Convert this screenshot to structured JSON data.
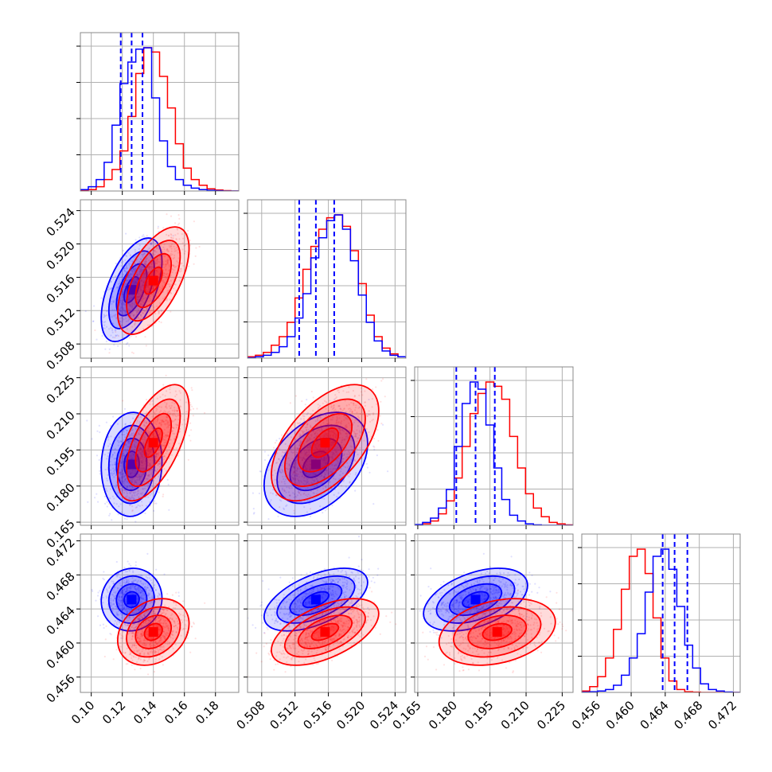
{
  "chart_data": {
    "type": "corner",
    "colors": {
      "series_a": "#0000ff",
      "series_b": "#ff0000",
      "grid": "#b0b0b0",
      "frame": "#888888"
    },
    "parameters": [
      {
        "id": "p0",
        "range": [
          0.093,
          0.195
        ],
        "ticks": [
          "0.10",
          "0.12",
          "0.14",
          "0.16",
          "0.18"
        ]
      },
      {
        "id": "p1",
        "range": [
          0.5063,
          0.5253
        ],
        "ticks": [
          "0.508",
          "0.512",
          "0.516",
          "0.520",
          "0.524"
        ]
      },
      {
        "id": "p2",
        "range": [
          0.1637,
          0.2295
        ],
        "ticks": [
          "0.165",
          "0.180",
          "0.195",
          "0.210",
          "0.225"
        ]
      },
      {
        "id": "p3",
        "range": [
          0.4542,
          0.4728
        ],
        "ticks": [
          "0.456",
          "0.460",
          "0.464",
          "0.468",
          "0.472"
        ]
      }
    ],
    "series": [
      {
        "color": "#0000ff",
        "mean": [
          0.126,
          0.5145,
          0.189,
          0.4651
        ],
        "std": [
          0.0085,
          0.0027,
          0.0094,
          0.0016
        ],
        "quantiles": [
          [
            0.119,
            0.126,
            0.133
          ],
          [
            0.5125,
            0.5145,
            0.5167
          ],
          [
            0.181,
            0.189,
            0.197
          ],
          [
            0.4637,
            0.4651,
            0.4666
          ]
        ]
      },
      {
        "color": "#ff0000",
        "mean": [
          0.14,
          0.5156,
          0.198,
          0.4613
        ],
        "std": [
          0.01,
          0.0028,
          0.0105,
          0.0017
        ]
      }
    ],
    "correlations": {
      "blue": {
        "1_0": 0.55,
        "2_0": 0.05,
        "2_1": 0.4,
        "3_0": 0.05,
        "3_1": 0.55,
        "3_2": 0.45
      },
      "red": {
        "1_0": 0.6,
        "2_0": 0.6,
        "2_1": 0.55,
        "3_0": 0.25,
        "3_1": 0.55,
        "3_2": 0.3
      }
    },
    "histograms": {
      "0": {
        "blue": [
          1,
          3,
          8,
          20,
          46,
          75,
          90,
          99,
          100,
          65,
          35,
          17,
          8,
          4,
          2,
          1,
          0.5,
          0.2,
          0,
          0
        ],
        "red": [
          0.5,
          1,
          3,
          8,
          15,
          28,
          52,
          82,
          100,
          97,
          80,
          58,
          33,
          16,
          8,
          4,
          1.5,
          0.7,
          0.3,
          0
        ]
      },
      "1": {
        "blue": [
          0.3,
          1,
          2,
          4,
          8,
          15,
          28,
          45,
          70,
          84,
          96,
          100,
          90,
          68,
          44,
          25,
          12,
          5,
          2,
          1
        ],
        "red": [
          1,
          2,
          4,
          9,
          15,
          25,
          42,
          62,
          78,
          90,
          98,
          100,
          92,
          75,
          52,
          30,
          15,
          7,
          3,
          1
        ]
      },
      "2": {
        "blue": [
          0.5,
          2,
          5,
          12,
          25,
          55,
          85,
          100,
          95,
          70,
          40,
          18,
          7,
          3,
          1,
          0.3,
          0,
          0,
          0,
          0
        ],
        "red": [
          0.3,
          1,
          3,
          8,
          17,
          33,
          55,
          78,
          92,
          100,
          97,
          88,
          62,
          40,
          22,
          12,
          6,
          2,
          1,
          0.3
        ]
      },
      "3": {
        "blue": [
          0.2,
          0.5,
          1,
          2,
          5,
          12,
          24,
          41,
          70,
          95,
          100,
          86,
          60,
          33,
          17,
          6,
          2,
          1,
          0.3,
          0
        ],
        "red": [
          1,
          4,
          11,
          24,
          44,
          72,
          95,
          100,
          83,
          52,
          24,
          8,
          2,
          0.5,
          0.2,
          0,
          0,
          0,
          0,
          0
        ]
      }
    },
    "contour_levels": [
      "0.5-sigma",
      "1-sigma",
      "1.5-sigma",
      "2-sigma"
    ],
    "grid": true
  }
}
